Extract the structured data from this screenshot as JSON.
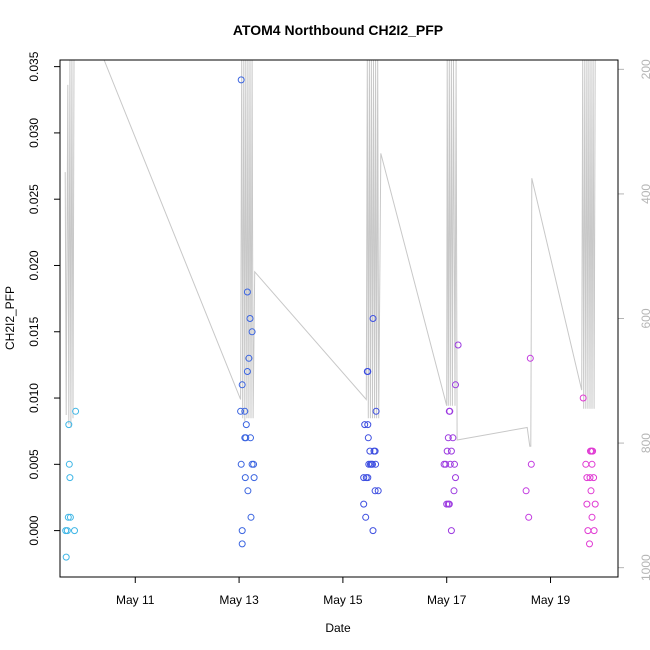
{
  "chart_data": {
    "type": "scatter",
    "title": "ATOM4 Northbound CH2I2_PFP",
    "xlabel": "Date",
    "ylabel": "CH2I2_PFP",
    "x_start_date": "2017-05-09",
    "xlim_days": [
      0.55,
      11.3
    ],
    "ylim": [
      -0.0035,
      0.0355
    ],
    "x_ticks": [
      {
        "day": 2,
        "label": "May 11"
      },
      {
        "day": 4,
        "label": "May 13"
      },
      {
        "day": 6,
        "label": "May 15"
      },
      {
        "day": 8,
        "label": "May 17"
      },
      {
        "day": 10,
        "label": "May 19"
      }
    ],
    "y_ticks": [
      {
        "value": 0.0,
        "label": "0.000"
      },
      {
        "value": 0.005,
        "label": "0.005"
      },
      {
        "value": 0.01,
        "label": "0.010"
      },
      {
        "value": 0.015,
        "label": "0.015"
      },
      {
        "value": 0.02,
        "label": "0.020"
      },
      {
        "value": 0.025,
        "label": "0.025"
      },
      {
        "value": 0.03,
        "label": "0.030"
      },
      {
        "value": 0.035,
        "label": "0.035"
      }
    ],
    "right_axis": {
      "label": "",
      "reversed": true,
      "lim": [
        1015,
        185
      ],
      "color": "#b5b5b5",
      "ticks": [
        {
          "value": 200,
          "label": "200"
        },
        {
          "value": 400,
          "label": "400"
        },
        {
          "value": 600,
          "label": "600"
        },
        {
          "value": 800,
          "label": "800"
        },
        {
          "value": 1000,
          "label": "1000"
        }
      ]
    },
    "points": [
      {
        "x": 0.67,
        "y": -0.002,
        "color": "#3fb6e6"
      },
      {
        "x": 0.66,
        "y": 0.0,
        "color": "#3fb6e6"
      },
      {
        "x": 0.69,
        "y": 0.0,
        "color": "#3fb6e6"
      },
      {
        "x": 0.71,
        "y": 0.001,
        "color": "#3fb6e6"
      },
      {
        "x": 0.75,
        "y": 0.001,
        "color": "#3fb6e6"
      },
      {
        "x": 0.74,
        "y": 0.004,
        "color": "#3fb6e6"
      },
      {
        "x": 0.73,
        "y": 0.005,
        "color": "#3fb6e6"
      },
      {
        "x": 0.72,
        "y": 0.008,
        "color": "#3fb6e6"
      },
      {
        "x": 0.83,
        "y": 0.0,
        "color": "#3fb6e6"
      },
      {
        "x": 0.85,
        "y": 0.009,
        "color": "#3fb6e6"
      },
      {
        "x": 4.04,
        "y": 0.034,
        "color": "#3a64e0"
      },
      {
        "x": 4.03,
        "y": 0.009,
        "color": "#3a64e0"
      },
      {
        "x": 4.06,
        "y": 0.011,
        "color": "#3a64e0"
      },
      {
        "x": 4.04,
        "y": 0.005,
        "color": "#3a64e0"
      },
      {
        "x": 4.06,
        "y": 0.0,
        "color": "#3a64e0"
      },
      {
        "x": 4.06,
        "y": -0.001,
        "color": "#3a64e0"
      },
      {
        "x": 4.11,
        "y": 0.009,
        "color": "#3a64e0"
      },
      {
        "x": 4.11,
        "y": 0.007,
        "color": "#3a64e0"
      },
      {
        "x": 4.13,
        "y": 0.007,
        "color": "#3a64e0"
      },
      {
        "x": 4.14,
        "y": 0.008,
        "color": "#3a64e0"
      },
      {
        "x": 4.12,
        "y": 0.004,
        "color": "#3a64e0"
      },
      {
        "x": 4.16,
        "y": 0.018,
        "color": "#3a64e0"
      },
      {
        "x": 4.16,
        "y": 0.012,
        "color": "#3a64e0"
      },
      {
        "x": 4.19,
        "y": 0.013,
        "color": "#3a64e0"
      },
      {
        "x": 4.21,
        "y": 0.016,
        "color": "#3a64e0"
      },
      {
        "x": 4.25,
        "y": 0.015,
        "color": "#3a64e0"
      },
      {
        "x": 4.22,
        "y": 0.007,
        "color": "#3a64e0"
      },
      {
        "x": 4.25,
        "y": 0.005,
        "color": "#3a64e0"
      },
      {
        "x": 4.28,
        "y": 0.005,
        "color": "#3a64e0"
      },
      {
        "x": 4.29,
        "y": 0.004,
        "color": "#3a64e0"
      },
      {
        "x": 4.17,
        "y": 0.003,
        "color": "#3a64e0"
      },
      {
        "x": 4.23,
        "y": 0.001,
        "color": "#3a64e0"
      },
      {
        "x": 6.4,
        "y": 0.002,
        "color": "#3d4ee0"
      },
      {
        "x": 6.44,
        "y": 0.001,
        "color": "#3d4ee0"
      },
      {
        "x": 6.4,
        "y": 0.004,
        "color": "#3d4ee0"
      },
      {
        "x": 6.45,
        "y": 0.004,
        "color": "#3d4ee0"
      },
      {
        "x": 6.48,
        "y": 0.004,
        "color": "#3d4ee0"
      },
      {
        "x": 6.42,
        "y": 0.008,
        "color": "#3d4ee0"
      },
      {
        "x": 6.48,
        "y": 0.008,
        "color": "#3d4ee0"
      },
      {
        "x": 6.47,
        "y": 0.012,
        "color": "#3d4ee0"
      },
      {
        "x": 6.48,
        "y": 0.012,
        "color": "#3d4ee0"
      },
      {
        "x": 6.49,
        "y": 0.007,
        "color": "#3d4ee0"
      },
      {
        "x": 6.52,
        "y": 0.006,
        "color": "#3d4ee0"
      },
      {
        "x": 6.5,
        "y": 0.005,
        "color": "#3d4ee0"
      },
      {
        "x": 6.53,
        "y": 0.005,
        "color": "#3d4ee0"
      },
      {
        "x": 6.55,
        "y": 0.005,
        "color": "#3d4ee0"
      },
      {
        "x": 6.57,
        "y": 0.005,
        "color": "#3d4ee0"
      },
      {
        "x": 6.6,
        "y": 0.006,
        "color": "#3d4ee0"
      },
      {
        "x": 6.62,
        "y": 0.006,
        "color": "#3d4ee0"
      },
      {
        "x": 6.63,
        "y": 0.005,
        "color": "#3d4ee0"
      },
      {
        "x": 6.58,
        "y": 0.016,
        "color": "#3d4ee0"
      },
      {
        "x": 6.64,
        "y": 0.009,
        "color": "#3d4ee0"
      },
      {
        "x": 6.62,
        "y": 0.003,
        "color": "#3d4ee0"
      },
      {
        "x": 6.68,
        "y": 0.003,
        "color": "#3d4ee0"
      },
      {
        "x": 6.58,
        "y": 0.0,
        "color": "#3d4ee0"
      },
      {
        "x": 7.95,
        "y": 0.005,
        "color": "#9c3ae0"
      },
      {
        "x": 7.98,
        "y": 0.005,
        "color": "#9c3ae0"
      },
      {
        "x": 8.0,
        "y": 0.002,
        "color": "#9c3ae0"
      },
      {
        "x": 8.03,
        "y": 0.002,
        "color": "#9c3ae0"
      },
      {
        "x": 8.05,
        "y": 0.002,
        "color": "#9c3ae0"
      },
      {
        "x": 8.01,
        "y": 0.006,
        "color": "#9c3ae0"
      },
      {
        "x": 8.03,
        "y": 0.007,
        "color": "#9c3ae0"
      },
      {
        "x": 8.05,
        "y": 0.009,
        "color": "#9c3ae0"
      },
      {
        "x": 8.06,
        "y": 0.009,
        "color": "#9c3ae0"
      },
      {
        "x": 8.07,
        "y": 0.005,
        "color": "#9c3ae0"
      },
      {
        "x": 8.09,
        "y": 0.006,
        "color": "#9c3ae0"
      },
      {
        "x": 8.12,
        "y": 0.007,
        "color": "#9c3ae0"
      },
      {
        "x": 8.15,
        "y": 0.005,
        "color": "#9c3ae0"
      },
      {
        "x": 8.17,
        "y": 0.004,
        "color": "#9c3ae0"
      },
      {
        "x": 8.14,
        "y": 0.003,
        "color": "#9c3ae0"
      },
      {
        "x": 8.17,
        "y": 0.011,
        "color": "#9c3ae0"
      },
      {
        "x": 8.22,
        "y": 0.014,
        "color": "#9c3ae0"
      },
      {
        "x": 8.09,
        "y": 0.0,
        "color": "#9c3ae0"
      },
      {
        "x": 9.53,
        "y": 0.003,
        "color": "#c33ae0"
      },
      {
        "x": 9.58,
        "y": 0.001,
        "color": "#c33ae0"
      },
      {
        "x": 9.61,
        "y": 0.013,
        "color": "#c33ae0"
      },
      {
        "x": 9.63,
        "y": 0.005,
        "color": "#c33ae0"
      },
      {
        "x": 10.63,
        "y": 0.01,
        "color": "#e03ad3"
      },
      {
        "x": 10.68,
        "y": 0.005,
        "color": "#e03ad3"
      },
      {
        "x": 10.7,
        "y": 0.004,
        "color": "#e03ad3"
      },
      {
        "x": 10.7,
        "y": 0.002,
        "color": "#e03ad3"
      },
      {
        "x": 10.72,
        "y": 0.0,
        "color": "#e03ad3"
      },
      {
        "x": 10.75,
        "y": -0.001,
        "color": "#e03ad3"
      },
      {
        "x": 10.76,
        "y": 0.004,
        "color": "#e03ad3"
      },
      {
        "x": 10.77,
        "y": 0.006,
        "color": "#e03ad3"
      },
      {
        "x": 10.79,
        "y": 0.006,
        "color": "#e03ad3"
      },
      {
        "x": 10.8,
        "y": 0.005,
        "color": "#e03ad3"
      },
      {
        "x": 10.81,
        "y": 0.006,
        "color": "#e03ad3"
      },
      {
        "x": 10.78,
        "y": 0.003,
        "color": "#e03ad3"
      },
      {
        "x": 10.8,
        "y": 0.001,
        "color": "#e03ad3"
      },
      {
        "x": 10.83,
        "y": 0.004,
        "color": "#e03ad3"
      },
      {
        "x": 10.86,
        "y": 0.002,
        "color": "#e03ad3"
      },
      {
        "x": 10.84,
        "y": 0.0,
        "color": "#e03ad3"
      }
    ],
    "pressure_line": {
      "color": "#c8c8c8",
      "points": [
        [
          0.65,
          365
        ],
        [
          0.67,
          755
        ],
        [
          0.7,
          225
        ],
        [
          0.72,
          770
        ],
        [
          0.74,
          180
        ],
        [
          0.76,
          775
        ],
        [
          0.78,
          180
        ],
        [
          0.8,
          760
        ],
        [
          0.82,
          180
        ],
        [
          0.84,
          180
        ],
        [
          0.86,
          180
        ],
        [
          1.4,
          180
        ],
        [
          4.03,
          730
        ],
        [
          4.05,
          180
        ],
        [
          4.07,
          760
        ],
        [
          4.09,
          180
        ],
        [
          4.11,
          765
        ],
        [
          4.13,
          180
        ],
        [
          4.15,
          760
        ],
        [
          4.17,
          180
        ],
        [
          4.19,
          760
        ],
        [
          4.21,
          180
        ],
        [
          4.23,
          760
        ],
        [
          4.25,
          180
        ],
        [
          4.27,
          760
        ],
        [
          4.3,
          525
        ],
        [
          6.45,
          730
        ],
        [
          6.47,
          180
        ],
        [
          6.49,
          760
        ],
        [
          6.51,
          180
        ],
        [
          6.53,
          760
        ],
        [
          6.55,
          180
        ],
        [
          6.57,
          760
        ],
        [
          6.59,
          180
        ],
        [
          6.61,
          760
        ],
        [
          6.63,
          180
        ],
        [
          6.65,
          760
        ],
        [
          6.67,
          180
        ],
        [
          6.69,
          760
        ],
        [
          6.73,
          335
        ],
        [
          8.0,
          740
        ],
        [
          8.01,
          180
        ],
        [
          8.03,
          740
        ],
        [
          8.05,
          180
        ],
        [
          8.07,
          740
        ],
        [
          8.09,
          180
        ],
        [
          8.11,
          740
        ],
        [
          8.13,
          180
        ],
        [
          8.16,
          740
        ],
        [
          8.18,
          180
        ],
        [
          8.2,
          795
        ],
        [
          9.55,
          775
        ],
        [
          9.6,
          805
        ],
        [
          9.62,
          805
        ],
        [
          9.64,
          375
        ],
        [
          10.6,
          715
        ],
        [
          10.62,
          180
        ],
        [
          10.64,
          745
        ],
        [
          10.66,
          180
        ],
        [
          10.68,
          745
        ],
        [
          10.7,
          180
        ],
        [
          10.72,
          745
        ],
        [
          10.74,
          180
        ],
        [
          10.76,
          745
        ],
        [
          10.78,
          180
        ],
        [
          10.8,
          745
        ],
        [
          10.82,
          180
        ],
        [
          10.84,
          745
        ],
        [
          10.86,
          180
        ]
      ]
    }
  }
}
